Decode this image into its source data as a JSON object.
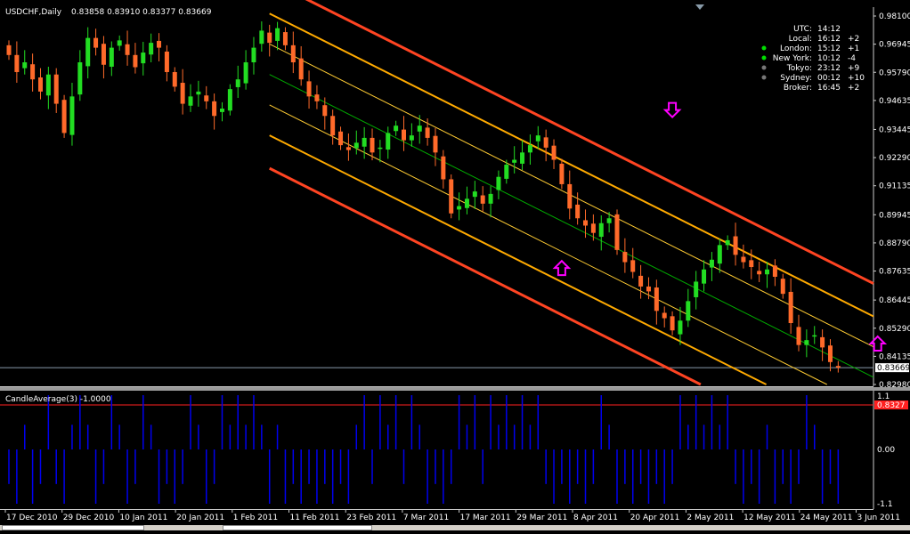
{
  "header": {
    "symbol": "USDCHF,Daily",
    "ohlc": "0.83858 0.83910 0.83377 0.83669"
  },
  "indicator": {
    "title": "CandleAverage(3) -1.0000",
    "levels": [
      "1.1",
      "0.00",
      "-1.1"
    ],
    "current_value_box": "0.8327"
  },
  "clock": [
    {
      "name": "UTC:",
      "time": "14:12",
      "offset": "",
      "dot": ""
    },
    {
      "name": "Local:",
      "time": "16:12",
      "offset": "+2",
      "dot": ""
    },
    {
      "name": "London:",
      "time": "15:12",
      "offset": "+1",
      "dot": "#00dd00"
    },
    {
      "name": "New York:",
      "time": "10:12",
      "offset": "-4",
      "dot": "#00dd00"
    },
    {
      "name": "Tokyo:",
      "time": "23:12",
      "offset": "+9",
      "dot": "#777777"
    },
    {
      "name": "Sydney:",
      "time": "00:12",
      "offset": "+10",
      "dot": "#777777"
    },
    {
      "name": "Broker:",
      "time": "16:45",
      "offset": "+2",
      "dot": ""
    }
  ],
  "chart_data": {
    "type": "candlestick",
    "y_ticks": [
      "0.98100",
      "0.96945",
      "0.95790",
      "0.94635",
      "0.93445",
      "0.92290",
      "0.91135",
      "0.89945",
      "0.88790",
      "0.87635",
      "0.86445",
      "0.85290",
      "0.84135",
      "0.82980"
    ],
    "ylim": [
      0.8298,
      0.981
    ],
    "current_price_label": "0.83669",
    "x_ticks": [
      "17 Dec 2010",
      "29 Dec 2010",
      "10 Jan 2011",
      "20 Jan 2011",
      "1 Feb 2011",
      "11 Feb 2011",
      "23 Feb 2011",
      "7 Mar 2011",
      "17 Mar 2011",
      "29 Mar 2011",
      "8 Apr 2011",
      "20 Apr 2011",
      "2 May 2011",
      "12 May 2011",
      "24 May 2011",
      "3 Jun 2011"
    ],
    "colors": {
      "up": "#22dd22",
      "down": "#ff6a2a",
      "outer_channel": "#ff4422",
      "mid_channel": "#ffaa00",
      "inner_channel": "#ffcc33",
      "regression_line": "#00aa00",
      "histogram": "#0000ee",
      "arrow": "#ff00ff"
    },
    "close_series": [
      0.965,
      0.958,
      0.962,
      0.955,
      0.95,
      0.957,
      0.945,
      0.933,
      0.948,
      0.962,
      0.972,
      0.968,
      0.961,
      0.968,
      0.971,
      0.965,
      0.96,
      0.966,
      0.97,
      0.968,
      0.958,
      0.952,
      0.945,
      0.948,
      0.95,
      0.946,
      0.94,
      0.943,
      0.951,
      0.955,
      0.962,
      0.968,
      0.975,
      0.97,
      0.976,
      0.969,
      0.962,
      0.955,
      0.948,
      0.946,
      0.94,
      0.932,
      0.928,
      0.926,
      0.929,
      0.931,
      0.925,
      0.927,
      0.933,
      0.936,
      0.93,
      0.932,
      0.936,
      0.931,
      0.925,
      0.914,
      0.9,
      0.903,
      0.906,
      0.909,
      0.904,
      0.908,
      0.915,
      0.92,
      0.922,
      0.925,
      0.928,
      0.932,
      0.927,
      0.922,
      0.912,
      0.902,
      0.898,
      0.895,
      0.892,
      0.896,
      0.898,
      0.885,
      0.88,
      0.876,
      0.87,
      0.868,
      0.86,
      0.857,
      0.852,
      0.856,
      0.864,
      0.872,
      0.877,
      0.881,
      0.887,
      0.889,
      0.883,
      0.88,
      0.878,
      0.875,
      0.877,
      0.874,
      0.867,
      0.855,
      0.846,
      0.848,
      0.85,
      0.845,
      0.839,
      0.8367
    ],
    "down_arrows": [
      {
        "bar": 84,
        "price": 0.9395
      }
    ],
    "up_arrows": [
      {
        "bar": 70,
        "price": 0.8805
      },
      {
        "bar": 110,
        "price": 0.8495
      }
    ],
    "histogram_levels": [
      -1.1,
      1.1
    ]
  }
}
